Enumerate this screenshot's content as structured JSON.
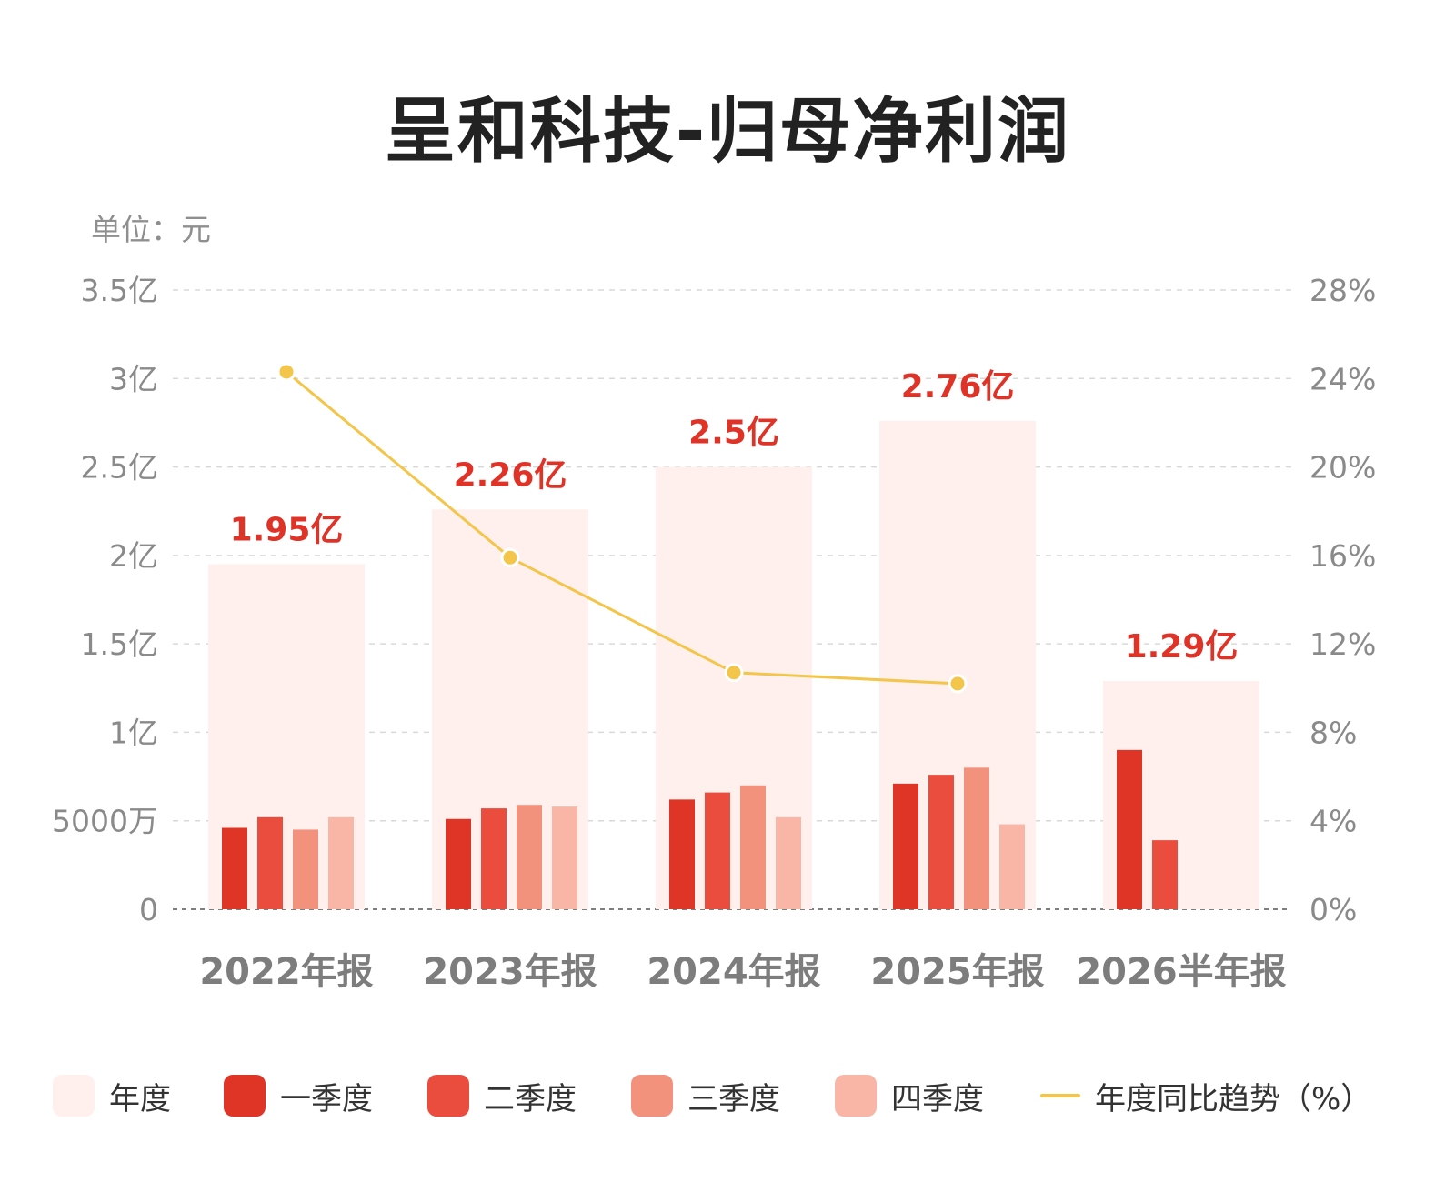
{
  "title": "呈和科技-归母净利润",
  "unit": "单位：元",
  "colors": {
    "annual": "#fff0ed",
    "q1": "#df3526",
    "q2": "#ea4c3d",
    "q3": "#f2917c",
    "q4": "#f9b5a6",
    "trend": "#f3c54a",
    "value_label": "#e03328",
    "axis_text": "#8a8a8a",
    "grid": "#d9d9d9"
  },
  "legend": [
    {
      "key": "annual",
      "label": "年度",
      "kind": "box"
    },
    {
      "key": "q1",
      "label": "一季度",
      "kind": "box"
    },
    {
      "key": "q2",
      "label": "二季度",
      "kind": "box"
    },
    {
      "key": "q3",
      "label": "三季度",
      "kind": "box"
    },
    {
      "key": "q4",
      "label": "四季度",
      "kind": "box"
    },
    {
      "key": "trend",
      "label": "年度同比趋势（%）",
      "kind": "line"
    }
  ],
  "chart_data": {
    "type": "bar",
    "title": "呈和科技-归母净利润",
    "unit": "元",
    "categories": [
      "2022年报",
      "2023年报",
      "2024年报",
      "2025年报",
      "2026半年报"
    ],
    "annual_values": [
      195000000,
      226000000,
      250000000,
      276000000,
      129000000
    ],
    "annual_labels": [
      "1.95亿",
      "2.26亿",
      "2.5亿",
      "2.76亿",
      "1.29亿"
    ],
    "series": [
      {
        "key": "q1",
        "name": "一季度",
        "values": [
          46000000,
          51000000,
          62000000,
          71000000,
          90000000
        ]
      },
      {
        "key": "q2",
        "name": "二季度",
        "values": [
          52000000,
          57000000,
          66000000,
          76000000,
          39000000
        ]
      },
      {
        "key": "q3",
        "name": "三季度",
        "values": [
          45000000,
          59000000,
          70000000,
          80000000,
          null
        ]
      },
      {
        "key": "q4",
        "name": "四季度",
        "values": [
          52000000,
          58000000,
          52000000,
          48000000,
          null
        ]
      }
    ],
    "trend": {
      "name": "年度同比趋势（%）",
      "values": [
        24.3,
        15.9,
        10.7,
        10.2,
        null
      ]
    },
    "ylim": [
      0,
      350000000
    ],
    "yticks": [
      0,
      50000000,
      100000000,
      150000000,
      200000000,
      250000000,
      300000000,
      350000000
    ],
    "ytick_labels": [
      "0",
      "5000万",
      "1亿",
      "1.5亿",
      "2亿",
      "2.5亿",
      "3亿",
      "3.5亿"
    ],
    "y2lim": [
      0,
      28
    ],
    "y2ticks": [
      0,
      4,
      8,
      12,
      16,
      20,
      24,
      28
    ],
    "y2tick_labels": [
      "0%",
      "4%",
      "8%",
      "12%",
      "16%",
      "20%",
      "24%",
      "28%"
    ],
    "grid": true,
    "legend_position": "bottom"
  }
}
